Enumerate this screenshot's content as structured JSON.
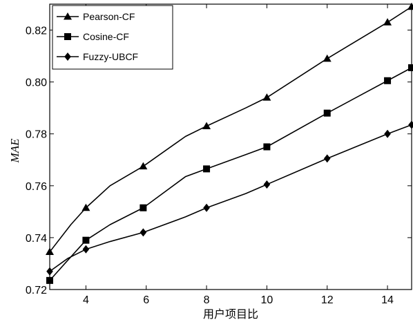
{
  "chart_data": {
    "type": "line",
    "title": "",
    "xlabel": "用户项目比",
    "ylabel": "MAE",
    "xlim": [
      2.8,
      14.8
    ],
    "ylim": [
      0.72,
      0.83
    ],
    "xticks": [
      "4",
      "6",
      "8",
      "10",
      "12",
      "14"
    ],
    "yticks": [
      "0.72",
      "0.74",
      "0.76",
      "0.78",
      "0.80",
      "0.82"
    ],
    "grid": false,
    "legend_position": "top-left",
    "series": [
      {
        "name": "Pearson-CF",
        "marker": "triangle",
        "x": [
          2.8,
          3.5,
          4.0,
          4.8,
          5.9,
          7.3,
          8.0,
          9.3,
          10.0,
          12.0,
          14.0,
          14.8
        ],
        "y": [
          0.7345,
          0.745,
          0.7515,
          0.76,
          0.7675,
          0.779,
          0.783,
          0.79,
          0.794,
          0.809,
          0.823,
          0.829
        ],
        "marker_x": [
          2.8,
          4.0,
          5.9,
          8.0,
          10.0,
          12.0,
          14.0,
          14.8
        ],
        "marker_y": [
          0.7345,
          0.7515,
          0.7675,
          0.783,
          0.794,
          0.809,
          0.823,
          0.829
        ]
      },
      {
        "name": "Cosine-CF",
        "marker": "square",
        "x": [
          2.8,
          3.3,
          4.0,
          4.8,
          5.9,
          7.3,
          8.0,
          9.3,
          10.0,
          12.0,
          14.0,
          14.8
        ],
        "y": [
          0.7235,
          0.73,
          0.739,
          0.745,
          0.7515,
          0.7635,
          0.7665,
          0.772,
          0.775,
          0.788,
          0.8005,
          0.8055
        ],
        "marker_x": [
          2.8,
          4.0,
          5.9,
          8.0,
          10.0,
          12.0,
          14.0,
          14.8
        ],
        "marker_y": [
          0.7235,
          0.739,
          0.7515,
          0.7665,
          0.775,
          0.788,
          0.8005,
          0.8055
        ]
      },
      {
        "name": "Fuzzy-UBCF",
        "marker": "diamond",
        "x": [
          2.8,
          3.4,
          4.0,
          4.8,
          5.9,
          7.3,
          8.0,
          9.3,
          10.0,
          12.0,
          14.0,
          14.8
        ],
        "y": [
          0.727,
          0.732,
          0.7355,
          0.7385,
          0.742,
          0.748,
          0.7515,
          0.757,
          0.7605,
          0.7705,
          0.78,
          0.7835
        ],
        "marker_x": [
          2.8,
          4.0,
          5.9,
          8.0,
          10.0,
          12.0,
          14.0,
          14.8
        ],
        "marker_y": [
          0.727,
          0.7355,
          0.742,
          0.7515,
          0.7605,
          0.7705,
          0.78,
          0.7835
        ]
      }
    ]
  }
}
